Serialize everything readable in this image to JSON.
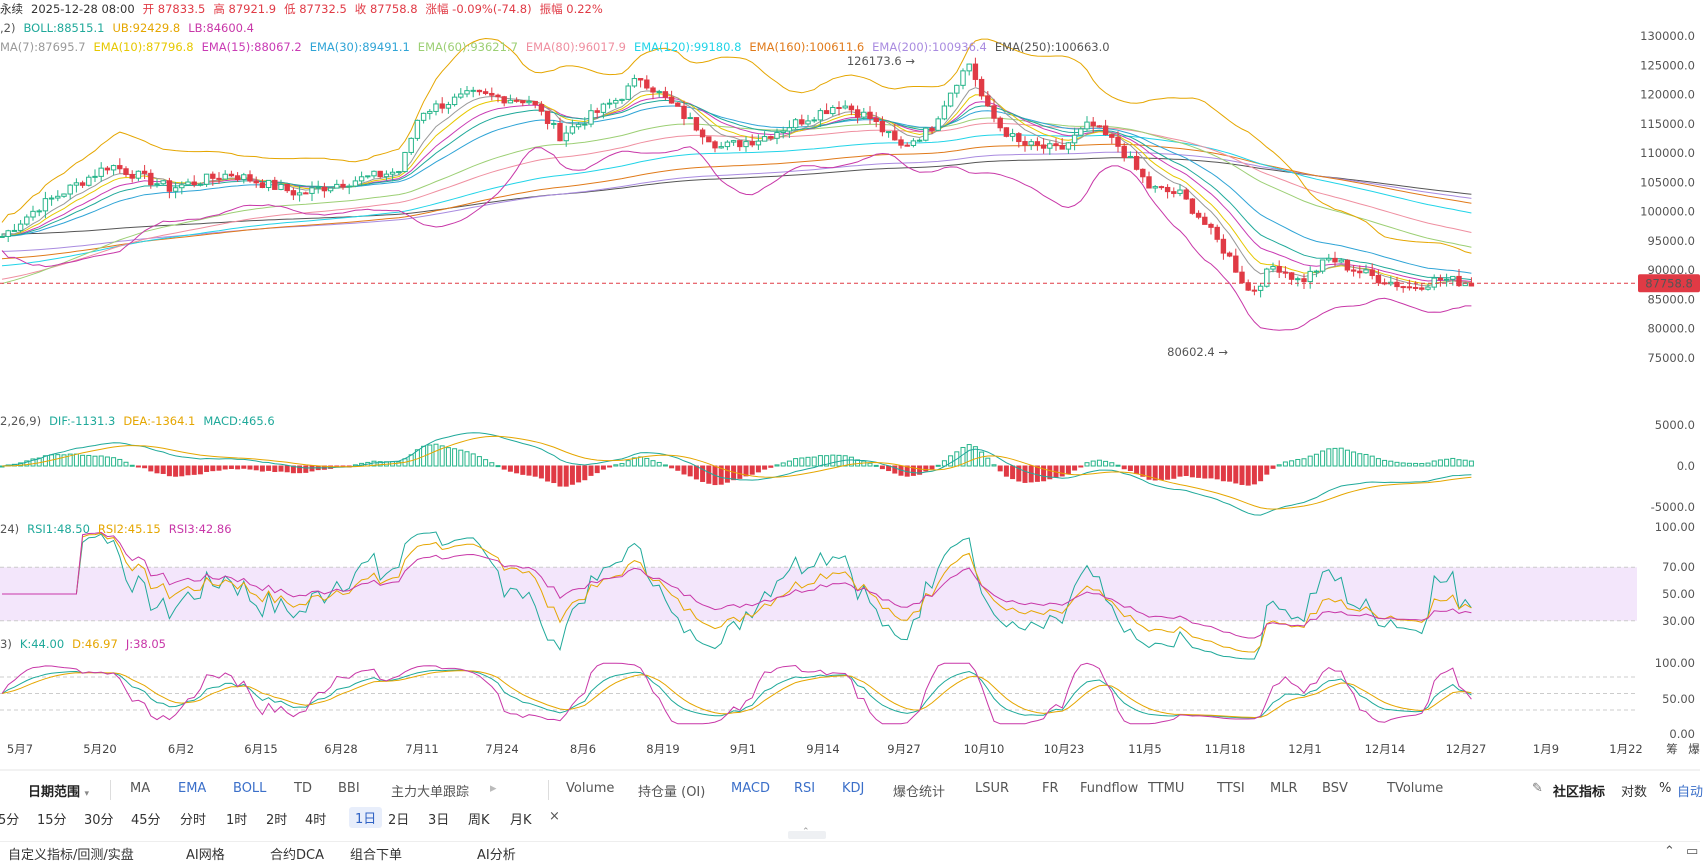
{
  "header": {
    "row1": [
      {
        "text": "永续",
        "color": "#333333"
      },
      {
        "text": "2025-12-28 08:00",
        "color": "#333333"
      },
      {
        "text": "开 87833.5",
        "color": "#e03a45"
      },
      {
        "text": "高 87921.9",
        "color": "#e03a45"
      },
      {
        "text": "低 87732.5",
        "color": "#e03a45"
      },
      {
        "text": "收 87758.8",
        "color": "#e03a45"
      },
      {
        "text": "涨幅 -0.09%(-74.8)",
        "color": "#e03a45"
      },
      {
        "text": "振幅 0.22%",
        "color": "#e03a45"
      }
    ],
    "row2": [
      {
        "text": ",2)",
        "color": "#555555"
      },
      {
        "text": "BOLL:88515.1",
        "color": "#1fa99a"
      },
      {
        "text": "UB:92429.8",
        "color": "#e5a600"
      },
      {
        "text": "LB:84600.4",
        "color": "#c837a8"
      }
    ],
    "row3": [
      {
        "text": "MA(7):87695.7",
        "color": "#999999"
      },
      {
        "text": "EMA(10):87796.8",
        "color": "#e6c800"
      },
      {
        "text": "EMA(15):88067.2",
        "color": "#c93bb4"
      },
      {
        "text": "EMA(30):89491.1",
        "color": "#2fa4d6"
      },
      {
        "text": "EMA(60):93621.7",
        "color": "#9ccf74"
      },
      {
        "text": "EMA(80):96017.9",
        "color": "#ef8fa0"
      },
      {
        "text": "EMA(120):99180.8",
        "color": "#22d4e8"
      },
      {
        "text": "EMA(160):100611.6",
        "color": "#e07a1a"
      },
      {
        "text": "EMA(200):100936.4",
        "color": "#a98be0"
      },
      {
        "text": "EMA(250):100663.0",
        "color": "#555555"
      }
    ]
  },
  "price_axis": {
    "ticks": [
      "130000.0",
      "125000.0",
      "120000.0",
      "115000.0",
      "110000.0",
      "105000.0",
      "100000.0",
      "95000.0",
      "90000.0",
      "85000.0",
      "80000.0",
      "75000.0"
    ],
    "current_price": "87758.8",
    "high_marker": "126173.6",
    "low_marker": "80602.4"
  },
  "macd": {
    "labels": [
      {
        "text": "2,26,9)",
        "color": "#555555"
      },
      {
        "text": "DIF:-1131.3",
        "color": "#1fa99a"
      },
      {
        "text": "DEA:-1364.1",
        "color": "#e5a600"
      },
      {
        "text": "MACD:465.6",
        "color": "#1fa99a"
      }
    ],
    "ticks": [
      "5000.0",
      "0.0",
      "-5000.0"
    ]
  },
  "rsi": {
    "labels": [
      {
        "text": "24)",
        "color": "#555555"
      },
      {
        "text": "RSI1:48.50",
        "color": "#1fa99a"
      },
      {
        "text": "RSI2:45.15",
        "color": "#e5a600"
      },
      {
        "text": "RSI3:42.86",
        "color": "#c837a8"
      }
    ],
    "ticks": [
      "100.00",
      "70.00",
      "50.00",
      "30.00"
    ]
  },
  "kdj": {
    "labels": [
      {
        "text": "3)",
        "color": "#555555"
      },
      {
        "text": "K:44.00",
        "color": "#1fa99a"
      },
      {
        "text": "D:46.97",
        "color": "#e5a600"
      },
      {
        "text": "J:38.05",
        "color": "#c837a8"
      }
    ],
    "ticks": [
      "100.00",
      "50.00",
      "0.00"
    ]
  },
  "dates": [
    "5月7",
    "5月20",
    "6月2",
    "6月15",
    "6月28",
    "7月11",
    "7月24",
    "8月6",
    "8月19",
    "9月1",
    "9月14",
    "9月27",
    "10月10",
    "10月23",
    "11月5",
    "11月18",
    "12月1",
    "12月14",
    "12月27",
    "1月9",
    "1月22"
  ],
  "dates_extra": [
    "筹",
    "爆"
  ],
  "toolbar1": {
    "date_range": "日期范围",
    "items": [
      "MA",
      "EMA",
      "BOLL",
      "TD",
      "BBI",
      "主力大单跟踪",
      "Volume",
      "持仓量 (OI)",
      "MACD",
      "RSI",
      "KDJ",
      "爆仓统计",
      "LSUR",
      "FR",
      "Fundflow",
      "TTMU",
      "TTSI",
      "MLR",
      "BSV",
      "TVolume"
    ],
    "blue_items": [
      "EMA",
      "BOLL",
      "MACD",
      "RSI",
      "KDJ"
    ],
    "community": "社区指标",
    "log": "对数",
    "percent": "%",
    "auto": "自动"
  },
  "toolbar2": {
    "items": [
      "5分",
      "15分",
      "30分",
      "45分",
      "分时",
      "1时",
      "2时",
      "4时",
      "1日",
      "2日",
      "3日",
      "周K",
      "月K"
    ],
    "active": "1日",
    "close": "×"
  },
  "toolbar3": {
    "items": [
      "自定义指标/回测/实盘",
      "AI网格",
      "合约DCA",
      "组合下单",
      "AI分析"
    ]
  }
}
